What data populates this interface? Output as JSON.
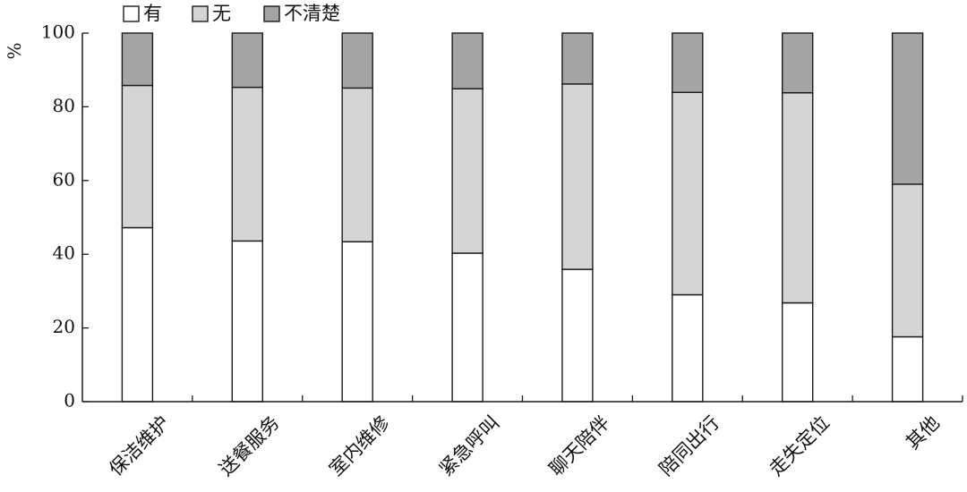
{
  "chart_data": {
    "type": "bar",
    "stacked": true,
    "ylabel": "%",
    "ylim": [
      0,
      100
    ],
    "yticks": [
      0,
      20,
      40,
      60,
      80,
      100
    ],
    "categories": [
      "保洁维护",
      "送餐服务",
      "室内维修",
      "紧急呼叫",
      "聊天陪伴",
      "陪同出行",
      "走失定位",
      "其他"
    ],
    "series": [
      {
        "name": "有",
        "color": "#ffffff",
        "values": [
          47.2,
          43.6,
          43.4,
          40.3,
          35.9,
          29.0,
          26.8,
          17.6
        ]
      },
      {
        "name": "无",
        "color": "#d3d5d6",
        "values": [
          38.6,
          41.7,
          41.7,
          44.6,
          50.3,
          54.9,
          57.0,
          41.4
        ]
      },
      {
        "name": "不清楚",
        "color": "#a3a4a6",
        "values": [
          14.2,
          14.7,
          14.9,
          15.1,
          13.8,
          16.1,
          16.2,
          41.0
        ]
      }
    ],
    "legend_position": "top",
    "grid": false
  }
}
